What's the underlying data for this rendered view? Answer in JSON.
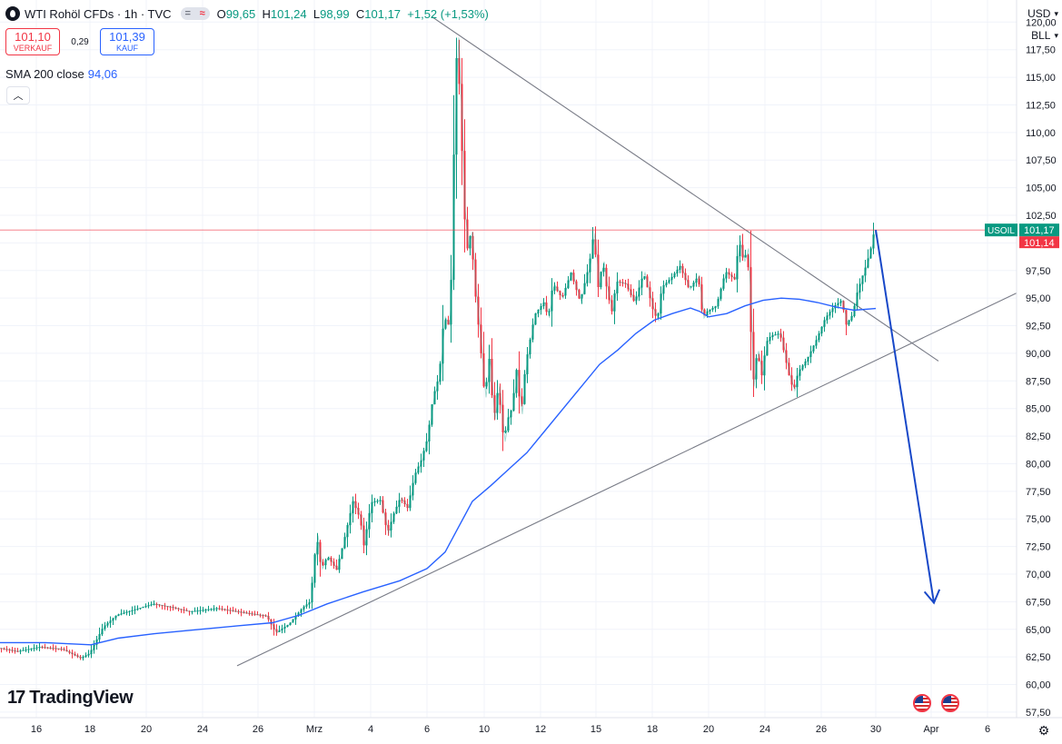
{
  "header": {
    "symbol_title": "WTI Rohöl CFDs · 1h · TVC",
    "open_key": "O",
    "open": "99,65",
    "high_key": "H",
    "high": "101,24",
    "low_key": "L",
    "low": "98,99",
    "close_key": "C",
    "close": "101,17",
    "change": "+1,52 (+1,53%)"
  },
  "trade": {
    "sell_price": "101,10",
    "sell_label": "VERKAUF",
    "spread": "0,29",
    "buy_price": "101,39",
    "buy_label": "KAUF"
  },
  "indicator": {
    "label": "SMA 200 close",
    "value": "94,06"
  },
  "toolbar": {
    "currency": "USD",
    "unit": "BLL"
  },
  "logo": {
    "text": "TradingView"
  },
  "colors": {
    "up": "#089981",
    "down": "#f23645",
    "sma": "#2962ff",
    "arrow": "#1848c8",
    "trendline": "#787b86"
  },
  "chart_data": {
    "type": "line",
    "x_tick_labels": [
      "16",
      "18",
      "20",
      "24",
      "26",
      "Mrz",
      "4",
      "6",
      "10",
      "12",
      "15",
      "18",
      "20",
      "24",
      "26",
      "30",
      "Apr",
      "6"
    ],
    "y_tick_labels": [
      "57,50",
      "60,00",
      "62,50",
      "65,00",
      "67,50",
      "70,00",
      "72,50",
      "75,00",
      "77,50",
      "80,00",
      "82,50",
      "85,00",
      "87,50",
      "90,00",
      "92,50",
      "95,00",
      "97,50",
      "100,00",
      "102,50",
      "105,00",
      "107,50",
      "110,00",
      "112,50",
      "115,00",
      "117,50",
      "120,00"
    ],
    "y_ticks": [
      57.5,
      60,
      62.5,
      65,
      67.5,
      70,
      72.5,
      75,
      77.5,
      80,
      82.5,
      85,
      87.5,
      90,
      92.5,
      95,
      97.5,
      100,
      102.5,
      105,
      107.5,
      110,
      112.5,
      115,
      117.5,
      120
    ],
    "ylim": [
      57.0,
      122.0
    ],
    "x_index_range": [
      0,
      1120
    ],
    "x_tick_index": [
      40,
      99,
      161,
      223,
      284,
      346,
      408,
      470,
      533,
      595,
      656,
      718,
      780,
      842,
      904,
      964,
      1025,
      1087
    ],
    "price_series": {
      "name": "USOIL",
      "x": [
        0,
        20,
        45,
        70,
        90,
        100,
        115,
        130,
        150,
        170,
        190,
        210,
        240,
        270,
        295,
        305,
        320,
        335,
        343,
        350,
        355,
        362,
        372,
        380,
        390,
        398,
        402,
        410,
        420,
        428,
        435,
        442,
        450,
        458,
        465,
        472,
        478,
        485,
        490,
        495,
        499,
        502,
        505,
        507,
        509,
        512,
        516,
        520,
        524,
        527,
        530,
        535,
        540,
        545,
        550,
        556,
        560,
        565,
        570,
        575,
        580,
        590,
        600,
        605,
        610,
        620,
        630,
        640,
        650,
        655,
        660,
        665,
        670,
        675,
        680,
        690,
        700,
        710,
        720,
        725,
        730,
        740,
        750,
        760,
        770,
        775,
        780,
        790,
        800,
        810,
        815,
        820,
        824,
        827,
        830,
        835,
        840,
        845,
        850,
        860,
        870,
        875,
        880,
        890,
        900,
        910,
        920,
        928,
        933,
        940,
        945,
        950,
        955,
        960,
        964
      ],
      "y": [
        63.3,
        63.0,
        63.4,
        63.2,
        62.4,
        62.8,
        65.2,
        66.3,
        66.8,
        67.3,
        67.0,
        66.6,
        66.9,
        66.5,
        66.2,
        64.7,
        65.5,
        67.0,
        67.5,
        73.5,
        70.5,
        71.6,
        70.4,
        73.0,
        76.6,
        75.0,
        72.6,
        76.5,
        76.7,
        73.7,
        75.5,
        76.9,
        76.0,
        79.0,
        80.3,
        82.3,
        86.0,
        88.0,
        93.3,
        92.6,
        98.0,
        113.0,
        118.6,
        114.4,
        111.0,
        103.0,
        99.5,
        101.0,
        96.0,
        93.4,
        91.0,
        86.0,
        89.5,
        84.0,
        87.0,
        82.0,
        84.0,
        85.0,
        88.5,
        84.5,
        89.0,
        93.5,
        94.6,
        93.2,
        96.3,
        95.0,
        97.3,
        94.7,
        98.0,
        100.9,
        96.0,
        98.3,
        95.5,
        93.8,
        96.5,
        96.3,
        94.6,
        97.3,
        94.0,
        93.0,
        96.0,
        96.8,
        97.9,
        95.8,
        97.0,
        93.2,
        93.8,
        94.3,
        97.4,
        96.7,
        100.2,
        98.3,
        99.5,
        94.4,
        87.0,
        90.2,
        88.0,
        91.0,
        91.6,
        91.8,
        88.0,
        86.6,
        88.3,
        89.5,
        91.2,
        93.2,
        94.3,
        94.8,
        92.6,
        93.5,
        95.5,
        96.8,
        98.0,
        99.5,
        101.17
      ]
    },
    "sma_series": {
      "name": "SMA 200 close",
      "x": [
        0,
        50,
        100,
        130,
        170,
        220,
        260,
        300,
        330,
        360,
        400,
        440,
        470,
        490,
        505,
        520,
        540,
        560,
        580,
        600,
        620,
        640,
        660,
        680,
        700,
        720,
        740,
        760,
        770,
        780,
        800,
        820,
        840,
        860,
        880,
        900,
        920,
        940,
        964
      ],
      "y": [
        63.8,
        63.8,
        63.6,
        64.2,
        64.6,
        65.0,
        65.3,
        65.6,
        66.3,
        67.3,
        68.4,
        69.4,
        70.5,
        72.0,
        74.3,
        76.6,
        78.0,
        79.5,
        81.0,
        83.0,
        85.0,
        87.0,
        89.0,
        90.3,
        91.8,
        93.0,
        93.6,
        94.1,
        93.8,
        93.3,
        93.6,
        94.3,
        94.8,
        95.0,
        94.9,
        94.6,
        94.2,
        93.9,
        94.06
      ]
    },
    "trendlines": [
      {
        "x": [
          475,
          1033
        ],
        "y": [
          120.5,
          89.3
        ]
      },
      {
        "x": [
          261,
          1120
        ],
        "y": [
          61.7,
          95.5
        ]
      }
    ],
    "forecast_arrow": {
      "x": [
        964,
        1028
      ],
      "y": [
        101.17,
        67.4
      ]
    },
    "current_price": {
      "label": "USOIL",
      "value": "101,17",
      "price": 101.17
    },
    "secondary_price": {
      "value": "101,14",
      "price": 101.14
    }
  }
}
